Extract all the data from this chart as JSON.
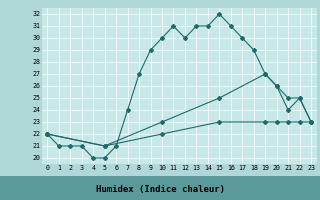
{
  "title": "",
  "xlabel": "Humidex (Indice chaleur)",
  "bg_color": "#b0d8d8",
  "plot_bg_color": "#c8e8e8",
  "line_color": "#1a6b6b",
  "xlabel_bg": "#5a9a9a",
  "xlabel_color": "#000000",
  "xlim": [
    -0.5,
    23.5
  ],
  "ylim": [
    19.5,
    32.5
  ],
  "yticks": [
    20,
    21,
    22,
    23,
    24,
    25,
    26,
    27,
    28,
    29,
    30,
    31,
    32
  ],
  "xticks": [
    0,
    1,
    2,
    3,
    4,
    5,
    6,
    7,
    8,
    9,
    10,
    11,
    12,
    13,
    14,
    15,
    16,
    17,
    18,
    19,
    20,
    21,
    22,
    23
  ],
  "line1_x": [
    0,
    1,
    2,
    3,
    4,
    5,
    6,
    7,
    8,
    9,
    10,
    11,
    12,
    13,
    14,
    15,
    16,
    17,
    18,
    19,
    20,
    21,
    22,
    23
  ],
  "line1_y": [
    22,
    21,
    21,
    21,
    20,
    20,
    21,
    24,
    27,
    29,
    30,
    31,
    30,
    31,
    31,
    32,
    31,
    30,
    29,
    27,
    26,
    24,
    25,
    23
  ],
  "line2_x": [
    0,
    5,
    10,
    15,
    19,
    20,
    21,
    22,
    23
  ],
  "line2_y": [
    22,
    21,
    23,
    25,
    27,
    26,
    25,
    25,
    23
  ],
  "line3_x": [
    0,
    5,
    10,
    15,
    19,
    20,
    21,
    22,
    23
  ],
  "line3_y": [
    22,
    21,
    22,
    23,
    23,
    23,
    23,
    23,
    23
  ]
}
